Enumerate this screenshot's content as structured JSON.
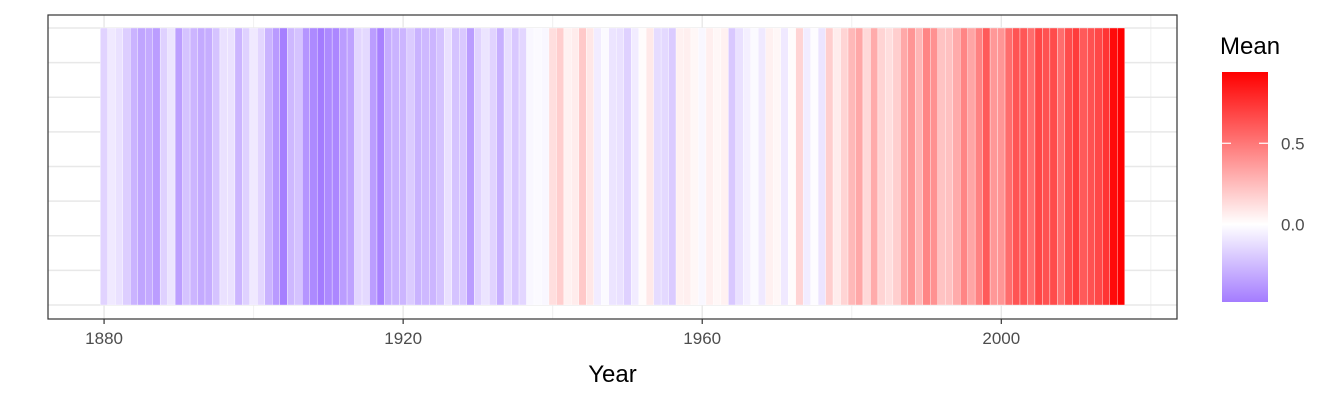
{
  "chart_data": {
    "type": "heatmap",
    "title": "",
    "xlabel": "Year",
    "ylabel": "",
    "x_range": [
      1872.5,
      2023.5
    ],
    "x_ticks": [
      1880,
      1920,
      1960,
      2000
    ],
    "x_tick_labels": [
      "1880",
      "1920",
      "1960",
      "2000"
    ],
    "years": [
      1880,
      2016
    ],
    "values": [
      -0.16,
      -0.08,
      -0.11,
      -0.18,
      -0.28,
      -0.33,
      -0.31,
      -0.36,
      -0.17,
      -0.1,
      -0.35,
      -0.22,
      -0.27,
      -0.31,
      -0.3,
      -0.22,
      -0.11,
      -0.11,
      -0.27,
      -0.17,
      -0.08,
      -0.15,
      -0.28,
      -0.37,
      -0.47,
      -0.26,
      -0.22,
      -0.39,
      -0.43,
      -0.48,
      -0.43,
      -0.44,
      -0.36,
      -0.34,
      -0.15,
      -0.14,
      -0.36,
      -0.46,
      -0.3,
      -0.28,
      -0.27,
      -0.19,
      -0.28,
      -0.26,
      -0.27,
      -0.22,
      -0.11,
      -0.22,
      -0.2,
      -0.36,
      -0.16,
      -0.1,
      -0.16,
      -0.29,
      -0.12,
      -0.2,
      -0.15,
      -0.03,
      -0.02,
      -0.03,
      0.12,
      0.18,
      0.05,
      0.07,
      0.2,
      0.09,
      -0.07,
      -0.02,
      -0.1,
      -0.11,
      -0.17,
      -0.07,
      0.01,
      0.08,
      -0.13,
      -0.14,
      -0.19,
      0.05,
      0.06,
      0.03,
      -0.03,
      0.06,
      0.03,
      0.05,
      -0.2,
      -0.11,
      -0.06,
      -0.02,
      -0.08,
      0.05,
      0.03,
      -0.08,
      0.01,
      0.16,
      -0.07,
      -0.01,
      -0.1,
      0.18,
      0.07,
      0.16,
      0.26,
      0.32,
      0.14,
      0.31,
      0.16,
      0.12,
      0.18,
      0.32,
      0.39,
      0.27,
      0.45,
      0.4,
      0.22,
      0.23,
      0.31,
      0.45,
      0.33,
      0.46,
      0.61,
      0.38,
      0.39,
      0.54,
      0.63,
      0.62,
      0.54,
      0.68,
      0.64,
      0.66,
      0.54,
      0.66,
      0.72,
      0.61,
      0.64,
      0.68,
      0.75,
      0.9,
      0.94
    ],
    "fill_scale": {
      "title": "Mean",
      "low_color": "#a47cff",
      "mid_color": "#ffffff",
      "high_color": "#ff0000",
      "limits": [
        -0.48,
        0.94
      ],
      "midpoint": 0,
      "ticks": [
        0.0,
        0.5
      ],
      "tick_labels": [
        "0.0",
        "0.5"
      ]
    },
    "grid": true,
    "legend_position": "right"
  }
}
